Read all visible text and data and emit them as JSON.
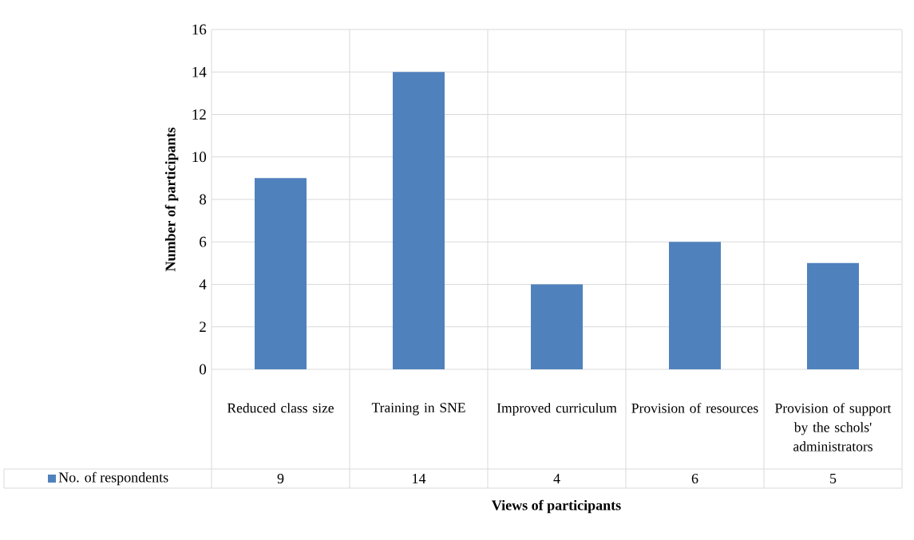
{
  "chart_data": {
    "type": "bar",
    "xlabel": "Views of participants",
    "ylabel": "Number of participants",
    "categories": [
      "Reduced class size",
      "Training in SNE",
      "Improved curriculum",
      "Provision of resources",
      "Provision of support by the schols' administrators"
    ],
    "series": [
      {
        "name": "No. of respondents",
        "color": "#4f81bd",
        "values": [
          9,
          14,
          4,
          6,
          5
        ]
      }
    ],
    "ylim": [
      0,
      16
    ],
    "yticks": [
      0,
      2,
      4,
      6,
      8,
      10,
      12,
      14,
      16
    ],
    "grid": true,
    "legend": "bottom",
    "data_labels": true
  }
}
